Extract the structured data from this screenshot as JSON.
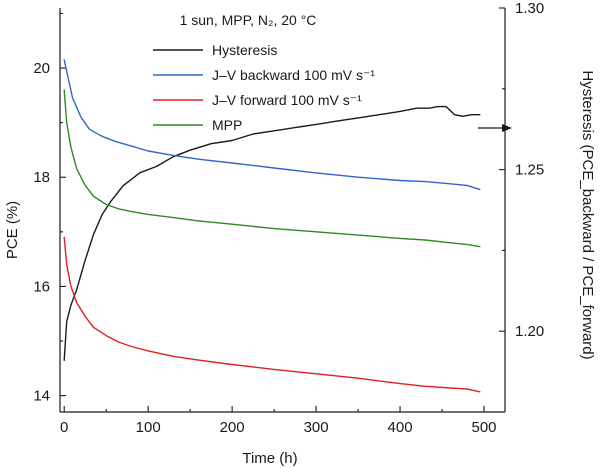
{
  "chart_data": {
    "type": "line",
    "condition": "1 sun, MPP, N₂, 20 °C",
    "xlabel": "Time (h)",
    "ylabel_left": "PCE (%)",
    "ylabel_right": "Hysteresis (PCE_backward / PCE_forward)",
    "xlim": [
      -5,
      525
    ],
    "ylim_left": [
      13.7,
      21.1
    ],
    "ylim_right": [
      1.175,
      1.3
    ],
    "xticks": [
      0,
      100,
      200,
      300,
      400,
      500
    ],
    "yticks_left": [
      14,
      16,
      18,
      20
    ],
    "yticks_right": [
      1.2,
      1.25,
      1.3
    ],
    "grid": false,
    "legend": "top-center",
    "series": [
      {
        "name": "Hysteresis",
        "axis": "right",
        "color": "#1a1a1a",
        "x": [
          0,
          3,
          8,
          15,
          25,
          35,
          45,
          55,
          70,
          90,
          110,
          130,
          150,
          175,
          200,
          225,
          250,
          275,
          300,
          325,
          350,
          375,
          400,
          420,
          435,
          445,
          455,
          465,
          475,
          485,
          495
        ],
        "y": [
          1.191,
          1.203,
          1.208,
          1.213,
          1.222,
          1.23,
          1.236,
          1.24,
          1.245,
          1.249,
          1.251,
          1.254,
          1.256,
          1.258,
          1.259,
          1.261,
          1.262,
          1.263,
          1.264,
          1.265,
          1.266,
          1.267,
          1.268,
          1.269,
          1.269,
          1.2695,
          1.2695,
          1.267,
          1.2665,
          1.267,
          1.267
        ]
      },
      {
        "name": "J–V backward 100 mV s⁻¹",
        "axis": "left",
        "color": "#2f67c8",
        "x": [
          0,
          5,
          10,
          20,
          30,
          45,
          60,
          80,
          100,
          130,
          160,
          200,
          250,
          300,
          350,
          400,
          430,
          460,
          480,
          490,
          495
        ],
        "y": [
          20.15,
          19.8,
          19.45,
          19.1,
          18.88,
          18.75,
          18.66,
          18.57,
          18.48,
          18.4,
          18.33,
          18.26,
          18.17,
          18.08,
          18.0,
          17.94,
          17.92,
          17.88,
          17.85,
          17.8,
          17.78
        ]
      },
      {
        "name": "J–V forward 100 mV s⁻¹",
        "axis": "left",
        "color": "#e02020",
        "x": [
          0,
          3,
          8,
          15,
          25,
          35,
          50,
          65,
          80,
          100,
          130,
          160,
          200,
          250,
          300,
          350,
          400,
          430,
          460,
          480,
          495
        ],
        "y": [
          16.9,
          16.4,
          16.0,
          15.7,
          15.45,
          15.25,
          15.1,
          14.98,
          14.9,
          14.82,
          14.72,
          14.65,
          14.57,
          14.48,
          14.4,
          14.32,
          14.22,
          14.17,
          14.14,
          14.12,
          14.07
        ]
      },
      {
        "name": "MPP",
        "axis": "left",
        "color": "#2e8b22",
        "x": [
          0,
          3,
          8,
          15,
          25,
          35,
          50,
          65,
          80,
          100,
          130,
          160,
          200,
          250,
          300,
          350,
          400,
          430,
          460,
          480,
          495
        ],
        "y": [
          19.6,
          19.0,
          18.55,
          18.15,
          17.85,
          17.65,
          17.5,
          17.42,
          17.37,
          17.32,
          17.26,
          17.2,
          17.14,
          17.06,
          17.0,
          16.94,
          16.88,
          16.85,
          16.8,
          16.77,
          16.73
        ]
      }
    ],
    "annotation_arrow": "→"
  }
}
